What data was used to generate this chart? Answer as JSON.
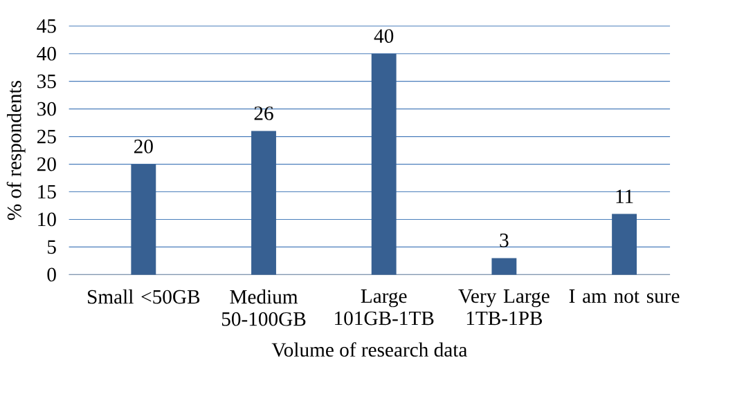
{
  "chart_data": {
    "type": "bar",
    "categories": [
      "Small <50GB",
      "Medium 50-100GB",
      "Large 101GB-1TB",
      "Very Large 1TB-1PB",
      "I am not sure"
    ],
    "values": [
      20,
      26,
      40,
      3,
      11
    ],
    "color": "#376092",
    "xlabel": "Volume of research data",
    "ylabel": "% of respondents",
    "ylim": [
      0,
      45
    ],
    "yticks": [
      0,
      5,
      10,
      15,
      20,
      25,
      30,
      35,
      40,
      45
    ],
    "grid": "y",
    "data_labels": true
  }
}
